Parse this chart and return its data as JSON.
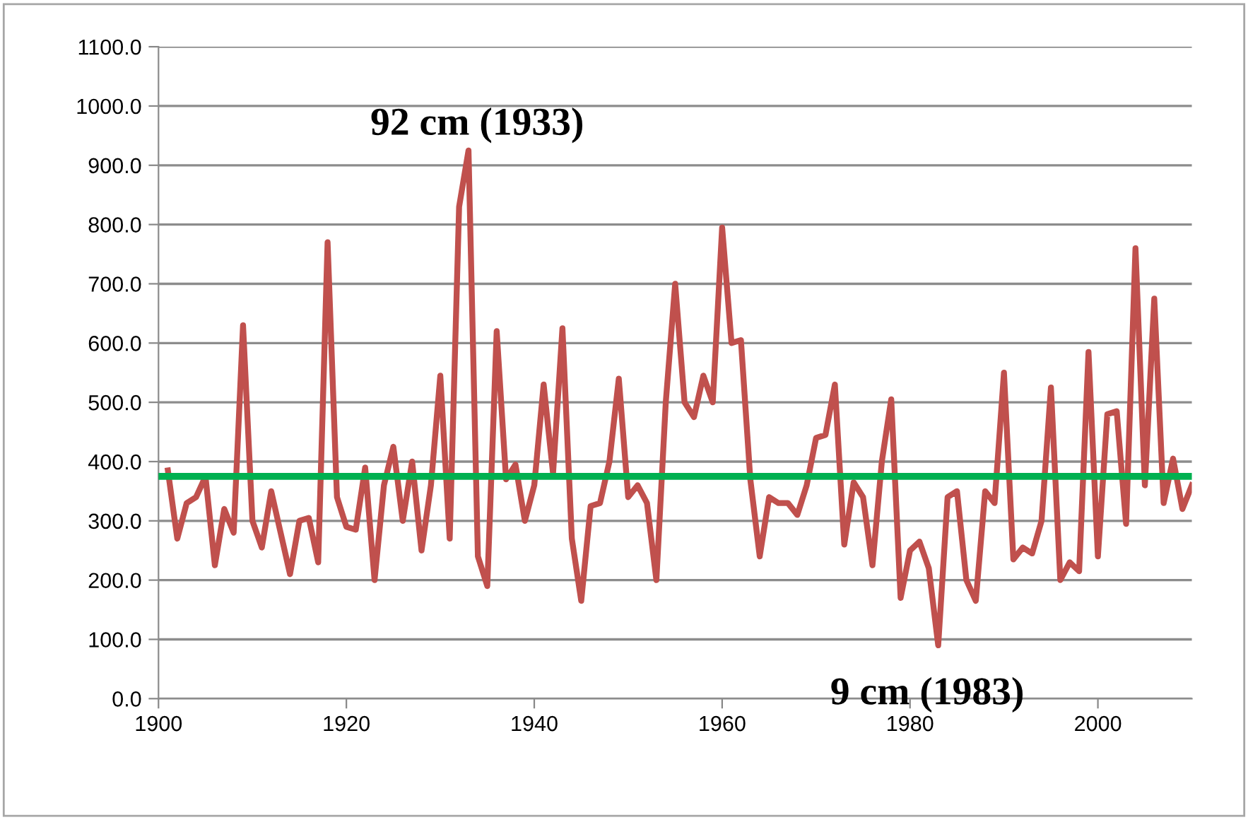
{
  "chart_data": {
    "type": "line",
    "x": [
      1901,
      1902,
      1903,
      1904,
      1905,
      1906,
      1907,
      1908,
      1909,
      1910,
      1911,
      1912,
      1913,
      1914,
      1915,
      1916,
      1917,
      1918,
      1919,
      1920,
      1921,
      1922,
      1923,
      1924,
      1925,
      1926,
      1927,
      1928,
      1929,
      1930,
      1931,
      1932,
      1933,
      1934,
      1935,
      1936,
      1937,
      1938,
      1939,
      1940,
      1941,
      1942,
      1943,
      1944,
      1945,
      1946,
      1947,
      1948,
      1949,
      1950,
      1951,
      1952,
      1953,
      1954,
      1955,
      1956,
      1957,
      1958,
      1959,
      1960,
      1961,
      1962,
      1963,
      1964,
      1965,
      1966,
      1967,
      1968,
      1969,
      1970,
      1971,
      1972,
      1973,
      1974,
      1975,
      1976,
      1977,
      1978,
      1979,
      1980,
      1981,
      1982,
      1983,
      1984,
      1985,
      1986,
      1987,
      1988,
      1989,
      1990,
      1991,
      1992,
      1993,
      1994,
      1995,
      1996,
      1997,
      1998,
      1999,
      2000,
      2001,
      2002,
      2003,
      2004,
      2005,
      2006,
      2007,
      2008,
      2009,
      2010
    ],
    "series": [
      {
        "color": "#c0504d",
        "values": [
          385,
          270,
          330,
          340,
          375,
          225,
          320,
          280,
          630,
          300,
          255,
          350,
          280,
          210,
          300,
          305,
          230,
          770,
          340,
          290,
          285,
          390,
          200,
          360,
          425,
          300,
          400,
          250,
          360,
          545,
          270,
          830,
          925,
          240,
          190,
          620,
          370,
          395,
          300,
          360,
          530,
          380,
          625,
          270,
          165,
          325,
          330,
          400,
          540,
          340,
          360,
          330,
          200,
          500,
          700,
          500,
          475,
          545,
          500,
          795,
          600,
          605,
          370,
          240,
          340,
          330,
          330,
          310,
          360,
          440,
          445,
          530,
          260,
          365,
          340,
          225,
          400,
          505,
          170,
          250,
          265,
          220,
          90,
          340,
          350,
          200,
          165,
          350,
          330,
          550,
          235,
          255,
          245,
          300,
          525,
          200,
          230,
          215,
          585,
          240,
          480,
          485,
          295,
          760,
          360,
          675,
          330,
          405,
          320,
          360
        ]
      }
    ],
    "xlim": [
      1900,
      2010
    ],
    "xticks": [
      1900,
      1920,
      1940,
      1960,
      1980,
      2000
    ],
    "ylim": [
      0,
      1100
    ],
    "yticks": [
      {
        "value": 0,
        "label": "0.0"
      },
      {
        "value": 100,
        "label": "100.0"
      },
      {
        "value": 200,
        "label": "200.0"
      },
      {
        "value": 300,
        "label": "300.0"
      },
      {
        "value": 400,
        "label": "400.0"
      },
      {
        "value": 500,
        "label": "500.0"
      },
      {
        "value": 600,
        "label": "600.0"
      },
      {
        "value": 700,
        "label": "700.0"
      },
      {
        "value": 800,
        "label": "800.0"
      },
      {
        "value": 900,
        "label": "900.0"
      },
      {
        "value": 1000,
        "label": "1000.0"
      },
      {
        "value": 1100,
        "label": "1100.0"
      }
    ],
    "grid": "y",
    "marker": "none",
    "line_style": "solid",
    "ref_lines": [
      {
        "axis": "y",
        "value": 375,
        "label": null,
        "color": "#00b050"
      }
    ],
    "annotations": [
      {
        "text": "92 cm (1933)",
        "x": 1933,
        "y": 925
      },
      {
        "text": "9 cm (1983)",
        "x": 1983,
        "y": 90
      }
    ]
  }
}
